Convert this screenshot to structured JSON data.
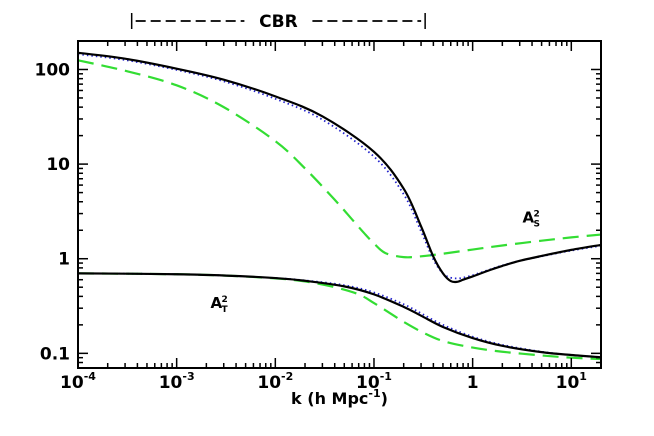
{
  "chart_data": {
    "type": "line",
    "xlabel": "k (h Mpc",
    "xlabel_exponent": "-1",
    "xlabel_close": ")",
    "xscale": "log",
    "yscale": "log",
    "xlim": [
      0.0001,
      20
    ],
    "ylim": [
      0.07,
      200
    ],
    "x_ticks": [
      {
        "value": 0.0001,
        "base": "10",
        "exp": "-4"
      },
      {
        "value": 0.001,
        "base": "10",
        "exp": "-3"
      },
      {
        "value": 0.01,
        "base": "10",
        "exp": "-2"
      },
      {
        "value": 0.1,
        "base": "10",
        "exp": "-1"
      },
      {
        "value": 1,
        "base": "1",
        "exp": ""
      },
      {
        "value": 10,
        "base": "10",
        "exp": "1"
      }
    ],
    "y_ticks": [
      {
        "value": 0.1,
        "label": "0.1"
      },
      {
        "value": 1,
        "label": "1"
      },
      {
        "value": 10,
        "label": "10"
      },
      {
        "value": 100,
        "label": "100"
      }
    ],
    "band": {
      "label": "CBR",
      "x_range": [
        0.00035,
        0.33
      ]
    },
    "annotations": [
      {
        "id": "as2",
        "main": "A",
        "sup": "2",
        "sub": "S",
        "x": 3.2,
        "y": 2.4
      },
      {
        "id": "at2",
        "main": "A",
        "sup": "2",
        "sub": "T",
        "x": 0.0022,
        "y": 0.3
      }
    ],
    "series": [
      {
        "id": "scalar-solid",
        "style": "solid",
        "color": "#000000",
        "x": [
          0.0001,
          0.0003,
          0.001,
          0.003,
          0.01,
          0.03,
          0.1,
          0.2,
          0.3,
          0.4,
          0.5,
          0.6,
          0.7,
          0.8,
          1,
          1.5,
          2,
          3,
          5,
          10,
          20
        ],
        "y": [
          150,
          130,
          102,
          78,
          52,
          32,
          13.5,
          5.5,
          2.2,
          1.05,
          0.7,
          0.58,
          0.57,
          0.6,
          0.65,
          0.76,
          0.84,
          0.95,
          1.07,
          1.24,
          1.4
        ]
      },
      {
        "id": "scalar-dotted",
        "style": "dotted",
        "color": "#2222cc",
        "x": [
          0.0001,
          0.0003,
          0.001,
          0.003,
          0.01,
          0.03,
          0.1,
          0.2,
          0.3,
          0.4,
          0.5,
          0.6,
          0.7,
          0.8,
          1,
          1.5,
          2,
          3,
          5,
          10,
          20
        ],
        "y": [
          145,
          126,
          99,
          75,
          49,
          29.5,
          12,
          4.8,
          1.95,
          0.98,
          0.7,
          0.63,
          0.62,
          0.63,
          0.67,
          0.77,
          0.85,
          0.95,
          1.06,
          1.22,
          1.37
        ]
      },
      {
        "id": "scalar-dashed",
        "style": "dashed",
        "color": "#33dd33",
        "x": [
          0.0001,
          0.0003,
          0.001,
          0.003,
          0.01,
          0.02,
          0.04,
          0.06,
          0.08,
          0.1,
          0.13,
          0.2,
          0.3,
          0.5,
          1,
          2,
          5,
          10,
          20
        ],
        "y": [
          125,
          97,
          68,
          40,
          17.5,
          9,
          4.2,
          2.6,
          1.85,
          1.45,
          1.15,
          1.04,
          1.06,
          1.13,
          1.25,
          1.38,
          1.55,
          1.68,
          1.8
        ]
      },
      {
        "id": "tensor-solid",
        "style": "solid",
        "color": "#000000",
        "x": [
          0.0001,
          0.0003,
          0.001,
          0.003,
          0.01,
          0.02,
          0.05,
          0.1,
          0.2,
          0.3,
          0.5,
          1,
          2,
          5,
          10,
          20
        ],
        "y": [
          0.7,
          0.695,
          0.685,
          0.665,
          0.625,
          0.585,
          0.51,
          0.42,
          0.31,
          0.25,
          0.19,
          0.145,
          0.12,
          0.103,
          0.096,
          0.091
        ]
      },
      {
        "id": "tensor-dotted",
        "style": "dotted",
        "color": "#2222cc",
        "x": [
          0.0001,
          0.0003,
          0.001,
          0.003,
          0.01,
          0.02,
          0.05,
          0.1,
          0.2,
          0.3,
          0.5,
          1,
          2,
          5,
          10,
          20
        ],
        "y": [
          0.7,
          0.695,
          0.685,
          0.665,
          0.625,
          0.59,
          0.525,
          0.44,
          0.33,
          0.265,
          0.2,
          0.15,
          0.123,
          0.104,
          0.096,
          0.091
        ]
      },
      {
        "id": "tensor-dashed",
        "style": "dashed",
        "color": "#33dd33",
        "x": [
          0.0001,
          0.0003,
          0.001,
          0.003,
          0.01,
          0.02,
          0.04,
          0.07,
          0.1,
          0.15,
          0.2,
          0.3,
          0.5,
          1,
          2,
          5,
          10,
          20
        ],
        "y": [
          0.7,
          0.695,
          0.685,
          0.665,
          0.62,
          0.575,
          0.5,
          0.42,
          0.34,
          0.26,
          0.215,
          0.17,
          0.135,
          0.115,
          0.104,
          0.095,
          0.09,
          0.087
        ]
      }
    ]
  }
}
